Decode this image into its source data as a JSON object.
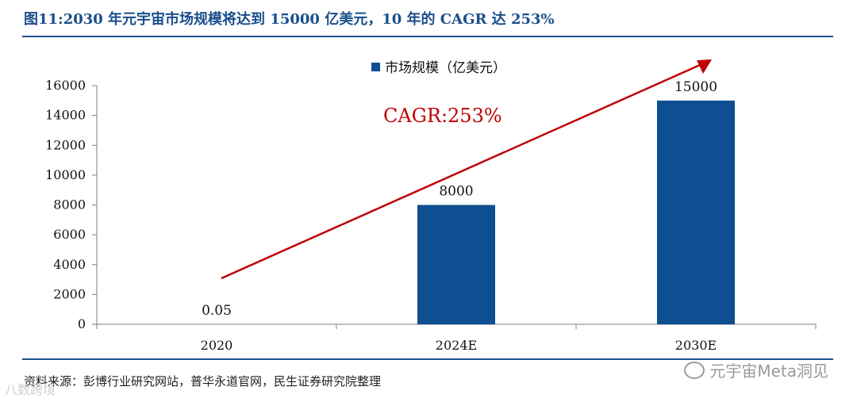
{
  "figure": {
    "title": "图11:2030 年元宇宙市场规模将达到 15000 亿美元，10 年的 CAGR 达 253%",
    "source": "资料来源：彭博行业研究网站，普华永道官网，民生证券研究院整理",
    "watermark": "元宇宙Meta洞见",
    "corner_mark": "八数跨境"
  },
  "colors": {
    "title": "#1a4e8c",
    "bar": "#0d4f91",
    "arrow": "#c00000",
    "axis": "#7f7f7f"
  },
  "chart_data": {
    "type": "bar",
    "categories": [
      "2020",
      "2024E",
      "2030E"
    ],
    "series": [
      {
        "name": "市场规模（亿美元）",
        "values": [
          0.05,
          8000,
          15000
        ]
      }
    ],
    "data_labels": [
      "0.05",
      "8000",
      "15000"
    ],
    "ylim": [
      0,
      16000
    ],
    "yticks": [
      0,
      2000,
      4000,
      6000,
      8000,
      10000,
      12000,
      14000,
      16000
    ],
    "legend_position": "top-center",
    "annotation": "CAGR:253%",
    "grid": false
  }
}
